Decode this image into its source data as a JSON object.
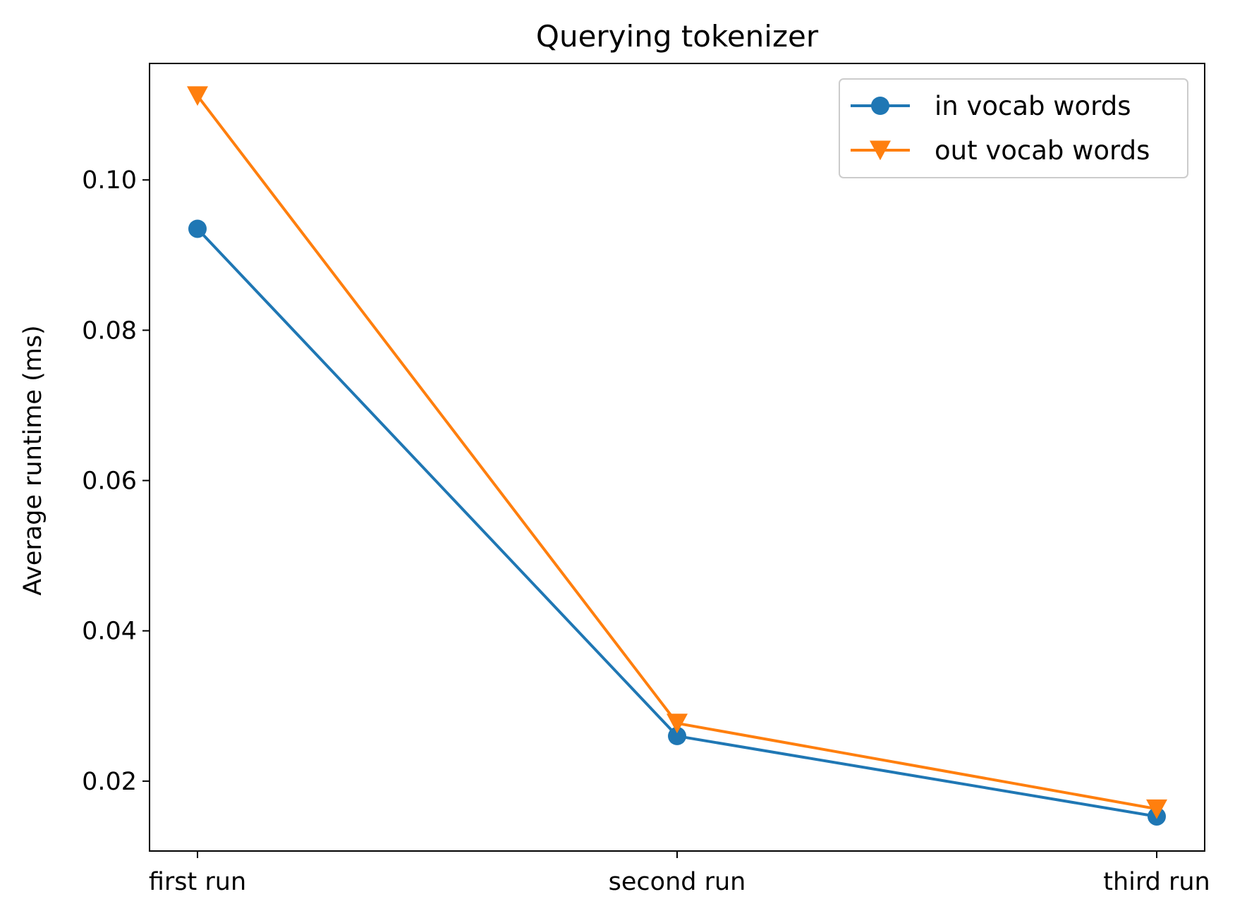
{
  "chart_data": {
    "type": "line",
    "title": "Querying tokenizer",
    "xlabel": "",
    "ylabel": "Average runtime (ms)",
    "categories": [
      "first run",
      "second run",
      "third run"
    ],
    "ylim": [
      0.0107,
      0.1155
    ],
    "yticks": [
      0.02,
      0.04,
      0.06,
      0.08,
      0.1
    ],
    "ytick_labels": [
      "0.02",
      "0.04",
      "0.06",
      "0.08",
      "0.10"
    ],
    "grid": false,
    "legend_position": "top-right",
    "series": [
      {
        "name": "in vocab words",
        "values": [
          0.0935,
          0.026,
          0.0153
        ],
        "color": "#1f77b4",
        "marker": "circle"
      },
      {
        "name": "out vocab words",
        "values": [
          0.1112,
          0.0277,
          0.0163
        ],
        "color": "#ff7f0e",
        "marker": "triangle-down"
      }
    ]
  }
}
